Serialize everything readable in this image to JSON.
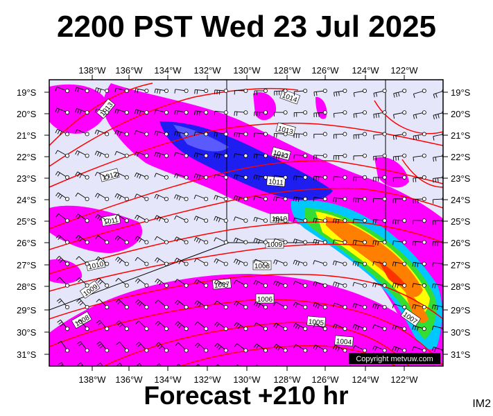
{
  "title": "2200 PST Wed 23 Jul 2025",
  "subtitle": "Forecast +210 hr",
  "model_label": "IM2",
  "copyright": "Copyright metvuw.com",
  "map": {
    "lon_ticks": [
      "138°W",
      "136°W",
      "134°W",
      "132°W",
      "130°W",
      "128°W",
      "126°W",
      "124°W",
      "122°W"
    ],
    "lat_ticks": [
      "19°S",
      "20°S",
      "21°S",
      "22°S",
      "23°S",
      "24°S",
      "25°S",
      "26°S",
      "27°S",
      "28°S",
      "29°S",
      "30°S",
      "31°S"
    ],
    "isobar_labels": [
      "1013",
      "1014",
      "1013",
      "1012",
      "1013",
      "1011",
      "1011",
      "1010",
      "1010",
      "1009",
      "1009",
      "1008",
      "1007",
      "1006",
      "1005",
      "1004",
      "1007",
      "1008"
    ],
    "colors": {
      "background": "#e6e6fa",
      "isobar": "#ff0000",
      "rain_light": "#ff00ff",
      "rain_moderate": "#1e1ef0",
      "rain_heavy": "#00c8ff",
      "rain_very_heavy": "#33dd33",
      "rain_extreme": "#ff7f00"
    }
  }
}
